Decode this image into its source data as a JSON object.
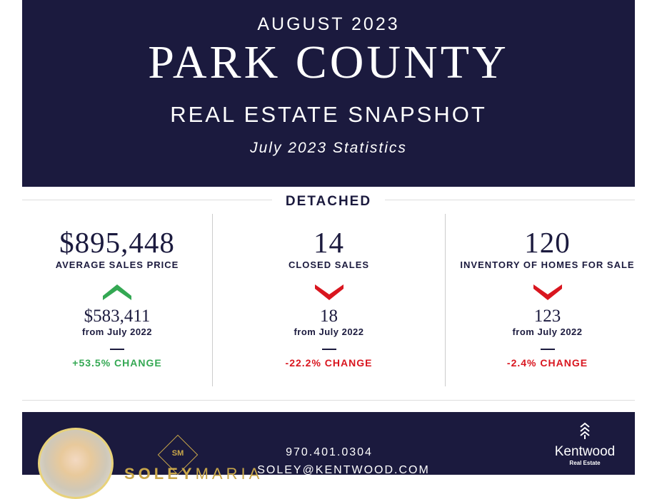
{
  "header": {
    "month": "AUGUST 2023",
    "county": "PARK COUNTY",
    "subtitle": "REAL ESTATE SNAPSHOT",
    "stats": "July 2023 Statistics"
  },
  "section": "DETACHED",
  "metrics": [
    {
      "value": "$895,448",
      "label": "AVERAGE SALES PRICE",
      "direction": "up",
      "previous": "$583,411",
      "from": "from July 2022",
      "change": "+53.5% CHANGE",
      "color": "#34a853"
    },
    {
      "value": "14",
      "label": "CLOSED SALES",
      "direction": "down",
      "previous": "18",
      "from": "from July 2022",
      "change": "-22.2% CHANGE",
      "color": "#d9161f"
    },
    {
      "value": "120",
      "label": "INVENTORY OF HOMES FOR SALE",
      "direction": "down",
      "previous": "123",
      "from": "from July 2022",
      "change": "-2.4% CHANGE",
      "color": "#d9161f"
    }
  ],
  "footer": {
    "monogram": "SM",
    "brand_first": "SOLEY",
    "brand_last": "MARIA",
    "phone": "970.401.0304",
    "email": "SOLEY@KENTWOOD.COM",
    "company": "Kentwood",
    "company_sub": "Real Estate"
  },
  "colors": {
    "navy": "#1b1a3e",
    "gold": "#c9a74a"
  }
}
